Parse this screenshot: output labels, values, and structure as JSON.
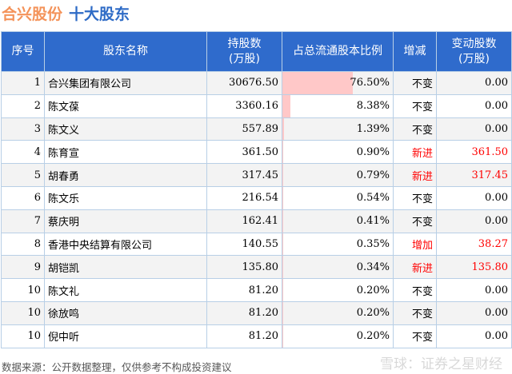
{
  "title": {
    "company": "合兴股份",
    "subject": "十大股东"
  },
  "headers": [
    "序号",
    "股东名称",
    "持股数\n(万股)",
    "占总流通股本比例",
    "增减",
    "变动股数\n(万股)"
  ],
  "colors": {
    "header": "#2f6bcc",
    "bar": "#ffc8c8",
    "increase": "#ff0000"
  },
  "chart_data": {
    "type": "table",
    "rows": [
      {
        "rank": "1",
        "name": "合兴集团有限公司",
        "shares": "30676.50",
        "ratio": 76.5,
        "ratio_text": "76.50%",
        "change": "不变",
        "delta": "0.00"
      },
      {
        "rank": "2",
        "name": "陈文葆",
        "shares": "3360.16",
        "ratio": 8.38,
        "ratio_text": "8.38%",
        "change": "不变",
        "delta": "0.00"
      },
      {
        "rank": "3",
        "name": "陈文义",
        "shares": "557.89",
        "ratio": 1.39,
        "ratio_text": "1.39%",
        "change": "不变",
        "delta": "0.00"
      },
      {
        "rank": "4",
        "name": "陈育宣",
        "shares": "361.50",
        "ratio": 0.9,
        "ratio_text": "0.90%",
        "change": "新进",
        "delta": "361.50"
      },
      {
        "rank": "5",
        "name": "胡春勇",
        "shares": "317.45",
        "ratio": 0.79,
        "ratio_text": "0.79%",
        "change": "新进",
        "delta": "317.45"
      },
      {
        "rank": "6",
        "name": "陈文乐",
        "shares": "216.54",
        "ratio": 0.54,
        "ratio_text": "0.54%",
        "change": "不变",
        "delta": "0.00"
      },
      {
        "rank": "7",
        "name": "蔡庆明",
        "shares": "162.41",
        "ratio": 0.41,
        "ratio_text": "0.41%",
        "change": "不变",
        "delta": "0.00"
      },
      {
        "rank": "8",
        "name": "香港中央结算有限公司",
        "shares": "140.55",
        "ratio": 0.35,
        "ratio_text": "0.35%",
        "change": "增加",
        "delta": "38.27"
      },
      {
        "rank": "9",
        "name": "胡铠凯",
        "shares": "135.80",
        "ratio": 0.34,
        "ratio_text": "0.34%",
        "change": "新进",
        "delta": "135.80"
      },
      {
        "rank": "10",
        "name": "陈文礼",
        "shares": "81.20",
        "ratio": 0.2,
        "ratio_text": "0.20%",
        "change": "不变",
        "delta": "0.00"
      },
      {
        "rank": "10",
        "name": "徐放鸣",
        "shares": "81.20",
        "ratio": 0.2,
        "ratio_text": "0.20%",
        "change": "不变",
        "delta": "0.00"
      },
      {
        "rank": "10",
        "name": "倪中听",
        "shares": "81.20",
        "ratio": 0.2,
        "ratio_text": "0.20%",
        "change": "不变",
        "delta": "0.00"
      }
    ]
  },
  "footer": "数据来源：公开数据整理，仅供参考不构成投资建议",
  "watermark": "雪球：证券之星财经"
}
